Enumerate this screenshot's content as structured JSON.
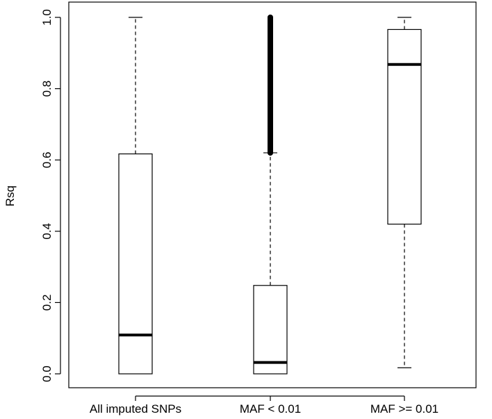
{
  "chart_data": {
    "type": "boxplot",
    "ylabel": "Rsq",
    "xlabel": "",
    "ylim": [
      0,
      1
    ],
    "yticks": [
      "0.0",
      "0.2",
      "0.4",
      "0.6",
      "0.8",
      "1.0"
    ],
    "categories": [
      "All imputed SNPs",
      "MAF < 0.01",
      "MAF >= 0.01"
    ],
    "boxes": [
      {
        "category": "All imputed SNPs",
        "min": 0.0,
        "q1": 0.0,
        "median": 0.109,
        "q3": 0.617,
        "max": 1.0,
        "outliers": []
      },
      {
        "category": "MAF < 0.01",
        "min": 0.0,
        "q1": 0.0,
        "median": 0.032,
        "q3": 0.248,
        "max": 0.62,
        "outliers_range": [
          0.62,
          1.0
        ]
      },
      {
        "category": "MAF >= 0.01",
        "min": 0.017,
        "q1": 0.42,
        "median": 0.868,
        "q3": 0.966,
        "max": 1.0,
        "outliers": []
      }
    ],
    "grid": false
  }
}
